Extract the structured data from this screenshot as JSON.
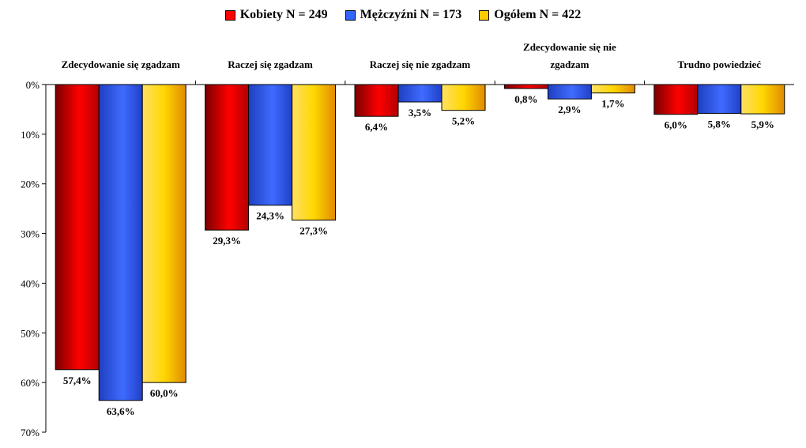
{
  "chart_data": {
    "type": "bar",
    "orientation": "inverted-vertical",
    "categories": [
      "Zdecydowanie się zgadzam",
      "Raczej się zgadzam",
      "Raczej się nie zgadzam",
      "Zdecydowanie się nie zgadzam",
      "Trudno powiedzieć"
    ],
    "series": [
      {
        "name": "Kobiety N = 249",
        "color": "#ff0000",
        "values": [
          57.4,
          29.3,
          6.4,
          0.8,
          6.0
        ],
        "labels": [
          "57,4%",
          "29,3%",
          "6,4%",
          "0,8%",
          "6,0%"
        ]
      },
      {
        "name": "Mężczyźni N = 173",
        "color": "#3366ff",
        "values": [
          63.6,
          24.3,
          3.5,
          2.9,
          5.8
        ],
        "labels": [
          "63,6%",
          "24,3%",
          "3,5%",
          "2,9%",
          "5,8%"
        ]
      },
      {
        "name": "Ogółem N = 422",
        "color": "#ffcc00",
        "values": [
          60.0,
          27.3,
          5.2,
          1.7,
          5.9
        ],
        "labels": [
          "60,0%",
          "27,3%",
          "5,2%",
          "1,7%",
          "5,9%"
        ]
      }
    ],
    "ylim": [
      0,
      70
    ],
    "yticks": [
      "0%",
      "10%",
      "20%",
      "30%",
      "40%",
      "50%",
      "60%",
      "70%"
    ],
    "legend_position": "top-center",
    "grid": false
  }
}
